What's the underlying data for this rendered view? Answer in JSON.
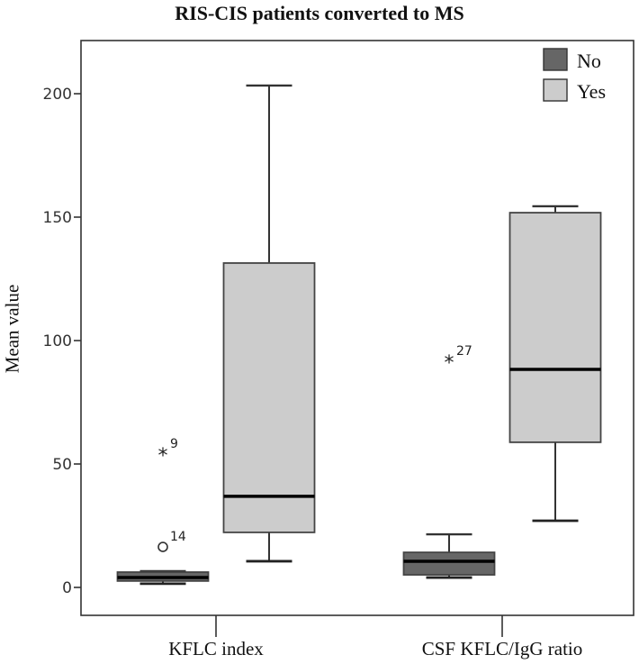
{
  "chart_data": {
    "type": "boxplot",
    "title": "RIS-CIS patients converted to MS",
    "xlabel": "",
    "ylabel": "Mean value",
    "ylim": [
      -12,
      222
    ],
    "yticks": [
      0,
      50,
      100,
      150,
      200
    ],
    "grid": false,
    "legend_position": "top-right",
    "categories": [
      "KFLC index",
      "CSF KFLC/IgG ratio"
    ],
    "series": [
      {
        "name": "No",
        "color": "#666666",
        "boxes": [
          {
            "category": "KFLC index",
            "whisker_low": 1.5,
            "q1": 2.6,
            "median": 4.0,
            "q3": 6.2,
            "whisker_high": 6.6,
            "outliers": [
              {
                "value": 16.4,
                "marker": "circle",
                "label": "14"
              },
              {
                "value": 54.0,
                "marker": "star",
                "label": "9"
              }
            ]
          },
          {
            "category": "CSF KFLC/IgG ratio",
            "whisker_low": 4.0,
            "q1": 5.1,
            "median": 10.6,
            "q3": 14.2,
            "whisker_high": 21.5,
            "outliers": [
              {
                "value": 91.6,
                "marker": "star",
                "label": "27"
              }
            ]
          }
        ]
      },
      {
        "name": "Yes",
        "color": "#cccccc",
        "boxes": [
          {
            "category": "KFLC index",
            "whisker_low": 10.6,
            "q1": 22.3,
            "median": 36.9,
            "q3": 131.4,
            "whisker_high": 203.3,
            "outliers": []
          },
          {
            "category": "CSF KFLC/IgG ratio",
            "whisker_low": 27.0,
            "q1": 58.8,
            "median": 88.3,
            "q3": 151.8,
            "whisker_high": 154.4,
            "outliers": []
          }
        ]
      }
    ]
  },
  "legend": [
    {
      "label": "No",
      "color": "#666666"
    },
    {
      "label": "Yes",
      "color": "#cccccc"
    }
  ]
}
